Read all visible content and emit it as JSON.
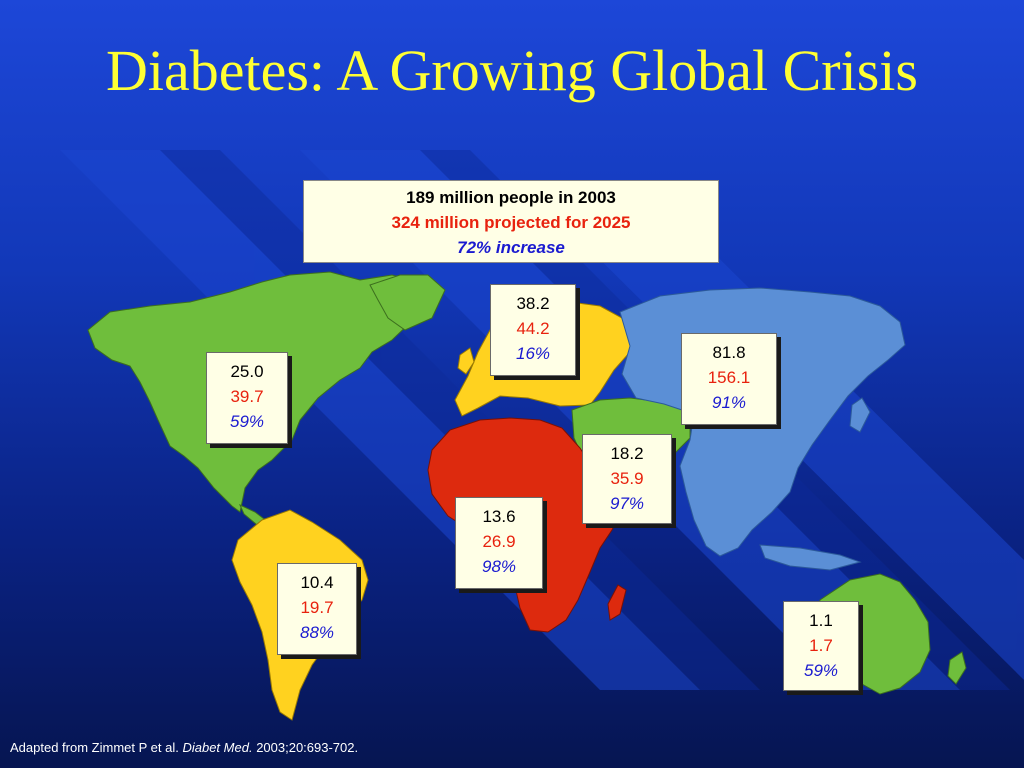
{
  "title": "Diabetes: A Growing Global Crisis",
  "summary": {
    "line1": "189 million people in 2003",
    "line2": "324 million projected for 2025",
    "line3": "72% increase"
  },
  "colors": {
    "value_2003": "#000000",
    "value_2025": "#e8220e",
    "increase": "#1a1ad0",
    "title": "#ffff33",
    "north_america": "#6fbe3c",
    "south_america": "#ffd21f",
    "europe": "#ffd21f",
    "africa": "#dd2a0e",
    "middle_east": "#6fbe3c",
    "asia": "#5b8fd6",
    "australia": "#6fbe3c"
  },
  "regions": [
    {
      "id": "north-america",
      "v2003": "25.0",
      "v2025": "39.7",
      "increase": "59%"
    },
    {
      "id": "south-america",
      "v2003": "10.4",
      "v2025": "19.7",
      "increase": "88%"
    },
    {
      "id": "europe",
      "v2003": "38.2",
      "v2025": "44.2",
      "increase": "16%"
    },
    {
      "id": "africa",
      "v2003": "13.6",
      "v2025": "26.9",
      "increase": "98%"
    },
    {
      "id": "middle-east",
      "v2003": "18.2",
      "v2025": "35.9",
      "increase": "97%"
    },
    {
      "id": "asia",
      "v2003": "81.8",
      "v2025": "156.1",
      "increase": "91%"
    },
    {
      "id": "australia",
      "v2003": "1.1",
      "v2025": "1.7",
      "increase": "59%"
    }
  ],
  "citation": {
    "prefix": "Adapted from Zimmet P et al.",
    "journal": "Diabet Med.",
    "suffix": "2003;20:693-702."
  }
}
